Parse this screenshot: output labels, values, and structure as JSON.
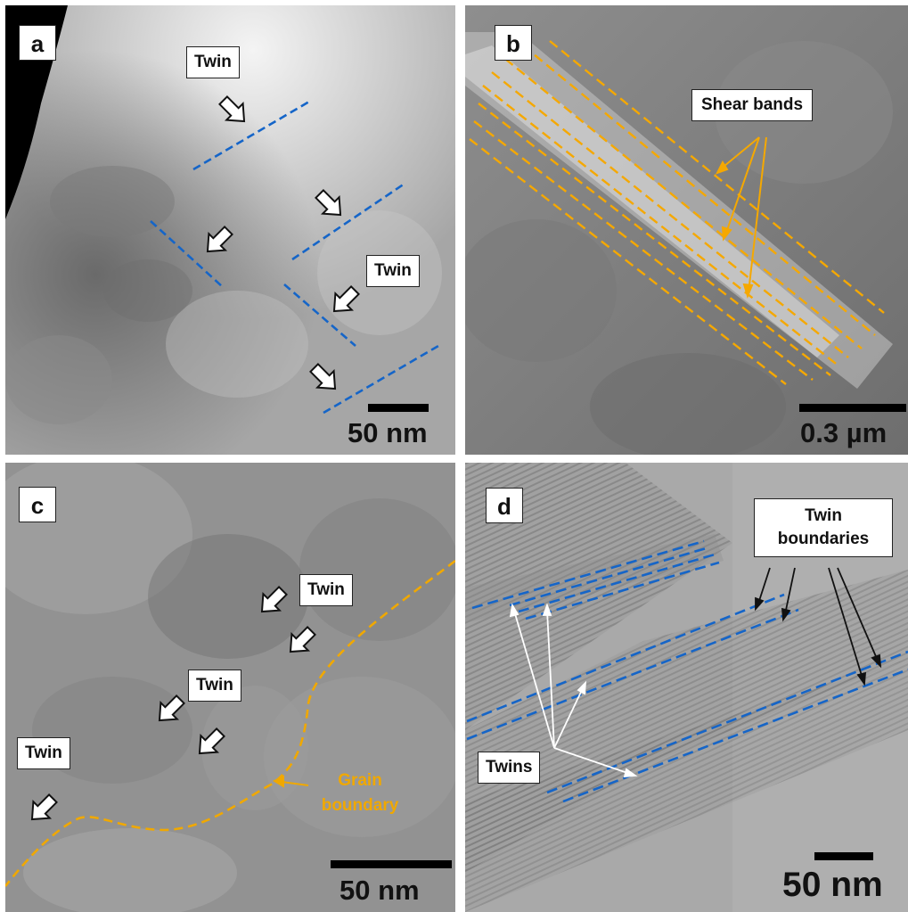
{
  "panels": {
    "a": {
      "letter": "a",
      "labels": [
        "Twin",
        "Twin"
      ],
      "scale": "50 nm"
    },
    "b": {
      "letter": "b",
      "labels": [
        "Shear bands"
      ],
      "scale": "0.3 µm"
    },
    "c": {
      "letter": "c",
      "labels": [
        "Twin",
        "Twin",
        "Twin"
      ],
      "grain_label_1": "Grain",
      "grain_label_2": "boundary",
      "scale": "50 nm"
    },
    "d": {
      "letter": "d",
      "tb_line_1": "Twin",
      "tb_line_2": "boundaries",
      "twins": "Twins",
      "scale": "50 nm"
    }
  },
  "colors": {
    "twin_line": "#1565c8",
    "shear_line": "#f5a800",
    "grain_line": "#f0a800",
    "arrow_fill": "#ffffff"
  }
}
